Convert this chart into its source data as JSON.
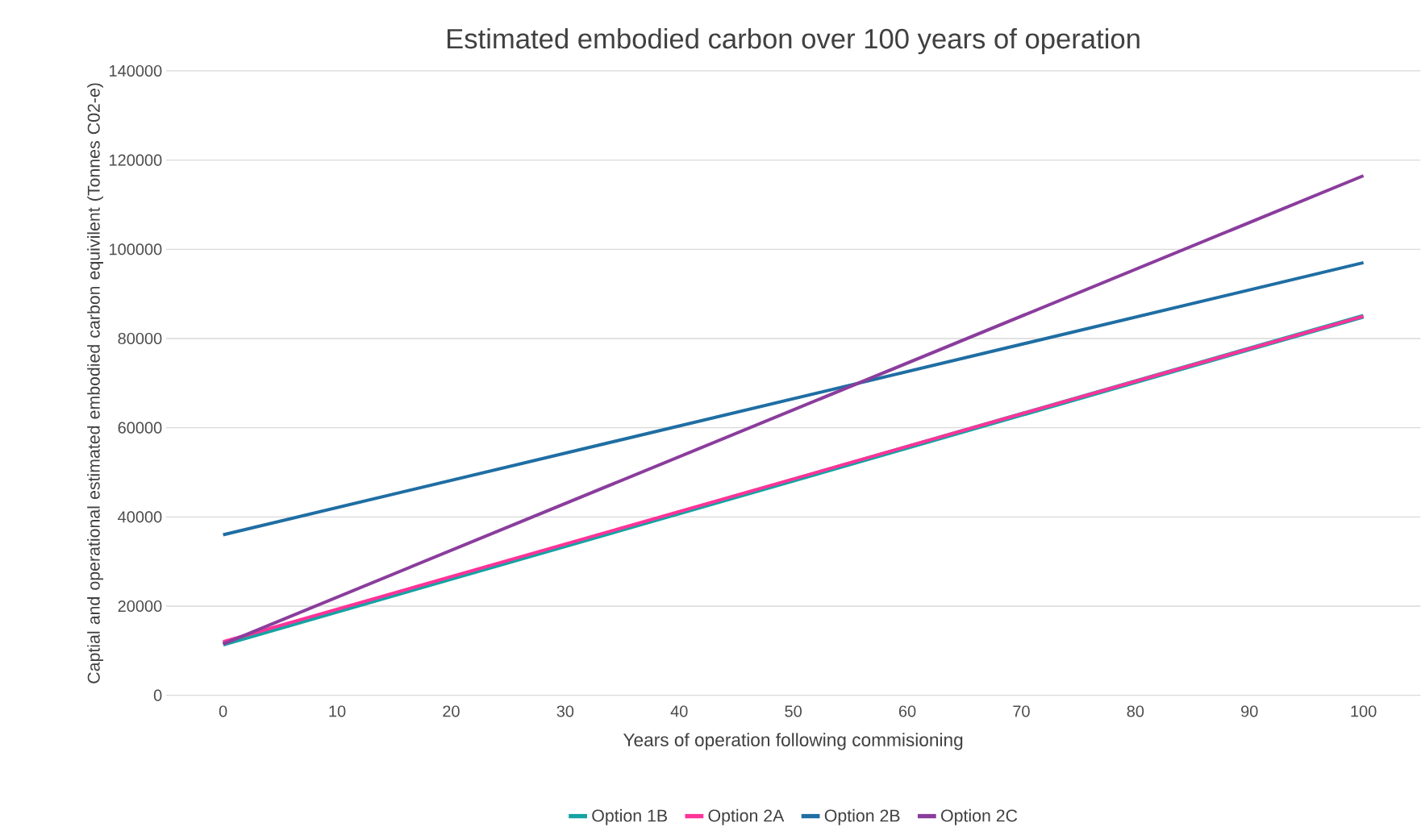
{
  "chart_data": {
    "type": "line",
    "title": "Estimated embodied carbon over 100 years of operation",
    "xlabel": "Years of operation following commisioning",
    "ylabel": "Captial and operational estimated embodied carbon equivilent (Tonnes C02-e)",
    "xlim": [
      -5,
      105
    ],
    "xticks": [
      0,
      10,
      20,
      30,
      40,
      50,
      60,
      70,
      80,
      90,
      100
    ],
    "ylim": [
      0,
      140000
    ],
    "yticks": [
      0,
      20000,
      40000,
      60000,
      80000,
      100000,
      120000,
      140000
    ],
    "x": [
      0,
      100
    ],
    "grid": "y",
    "legend": "bottom",
    "marker": "none",
    "line_style": "solid",
    "series": [
      {
        "name": "Option 1B",
        "color": "#15a3a3",
        "values": [
          11500,
          85000
        ]
      },
      {
        "name": "Option 2A",
        "color": "#ff3399",
        "values": [
          12000,
          85000
        ]
      },
      {
        "name": "Option 2B",
        "color": "#1f6ea3",
        "values": [
          36000,
          97000
        ]
      },
      {
        "name": "Option 2C",
        "color": "#8a3d9c",
        "values": [
          11500,
          116500
        ]
      }
    ]
  }
}
